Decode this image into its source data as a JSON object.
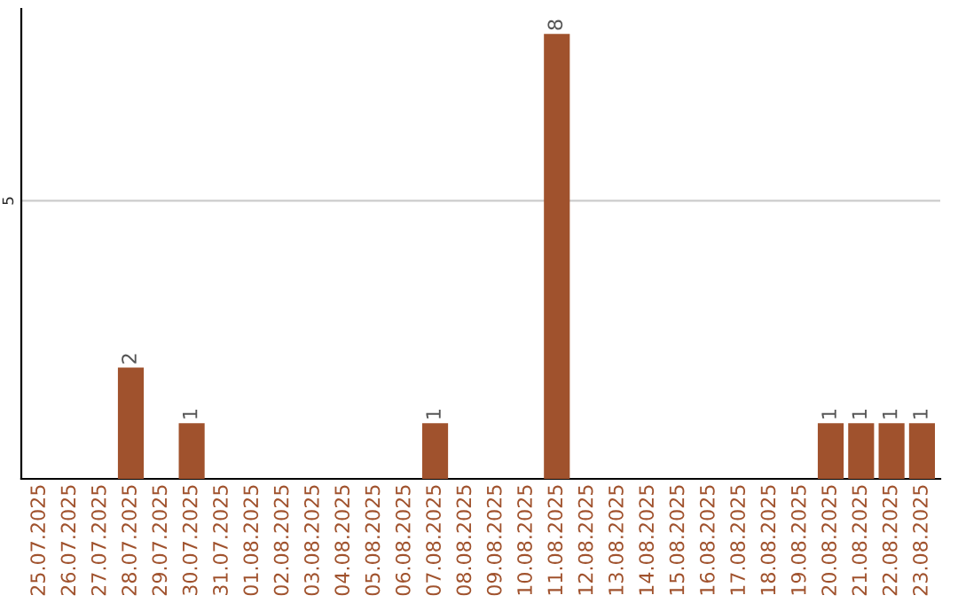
{
  "chart_data": {
    "type": "bar",
    "categories": [
      "25.07.2025",
      "26.07.2025",
      "27.07.2025",
      "28.07.2025",
      "29.07.2025",
      "30.07.2025",
      "31.07.2025",
      "01.08.2025",
      "02.08.2025",
      "03.08.2025",
      "04.08.2025",
      "05.08.2025",
      "06.08.2025",
      "07.08.2025",
      "08.08.2025",
      "09.08.2025",
      "10.08.2025",
      "11.08.2025",
      "12.08.2025",
      "13.08.2025",
      "14.08.2025",
      "15.08.2025",
      "16.08.2025",
      "17.08.2025",
      "18.08.2025",
      "19.08.2025",
      "20.08.2025",
      "21.08.2025",
      "22.08.2025",
      "23.08.2025"
    ],
    "values": [
      0,
      0,
      0,
      2,
      0,
      1,
      0,
      0,
      0,
      0,
      0,
      0,
      0,
      1,
      0,
      0,
      0,
      8,
      0,
      0,
      0,
      0,
      0,
      0,
      0,
      0,
      1,
      1,
      1,
      1
    ],
    "value_labels": [
      null,
      null,
      null,
      "2",
      null,
      "1",
      null,
      null,
      null,
      null,
      null,
      null,
      null,
      "1",
      null,
      null,
      null,
      "8",
      null,
      null,
      null,
      null,
      null,
      null,
      null,
      null,
      "1",
      "1",
      "1",
      "1"
    ],
    "color": "#a0522d",
    "ylim": [
      0,
      8.45
    ],
    "yticks": [
      5
    ],
    "grid": "y",
    "legend": false
  }
}
